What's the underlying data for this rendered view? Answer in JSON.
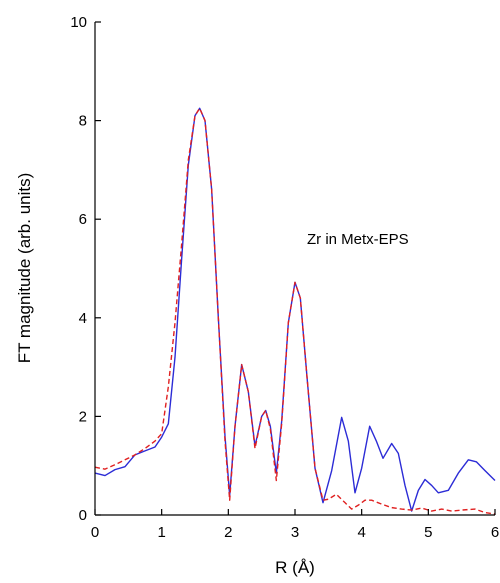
{
  "chart_data": {
    "type": "line",
    "title": "",
    "xlabel": "R (Å)",
    "ylabel": "FT magnitude (arb. units)",
    "xlim": [
      0,
      6
    ],
    "ylim": [
      0,
      10
    ],
    "x_ticks": [
      0,
      1,
      2,
      3,
      4,
      5,
      6
    ],
    "y_ticks": [
      0,
      2,
      4,
      6,
      8,
      10
    ],
    "grid": false,
    "annotation": "Zr in Metx-EPS",
    "series": [
      {
        "style": "solid",
        "color": "#2c2cd6",
        "points": [
          [
            0.0,
            0.85
          ],
          [
            0.15,
            0.8
          ],
          [
            0.3,
            0.92
          ],
          [
            0.45,
            0.98
          ],
          [
            0.6,
            1.22
          ],
          [
            0.75,
            1.3
          ],
          [
            0.9,
            1.38
          ],
          [
            1.0,
            1.58
          ],
          [
            1.1,
            1.85
          ],
          [
            1.2,
            3.2
          ],
          [
            1.3,
            5.2
          ],
          [
            1.4,
            7.1
          ],
          [
            1.5,
            8.1
          ],
          [
            1.57,
            8.25
          ],
          [
            1.65,
            8.0
          ],
          [
            1.75,
            6.6
          ],
          [
            1.85,
            4.0
          ],
          [
            1.95,
            1.6
          ],
          [
            2.02,
            0.4
          ],
          [
            2.1,
            1.8
          ],
          [
            2.2,
            3.05
          ],
          [
            2.3,
            2.5
          ],
          [
            2.4,
            1.4
          ],
          [
            2.5,
            2.0
          ],
          [
            2.56,
            2.12
          ],
          [
            2.63,
            1.8
          ],
          [
            2.72,
            0.85
          ],
          [
            2.8,
            1.9
          ],
          [
            2.9,
            3.9
          ],
          [
            3.0,
            4.72
          ],
          [
            3.08,
            4.4
          ],
          [
            3.18,
            2.8
          ],
          [
            3.3,
            0.95
          ],
          [
            3.42,
            0.25
          ],
          [
            3.55,
            0.9
          ],
          [
            3.7,
            1.98
          ],
          [
            3.8,
            1.5
          ],
          [
            3.9,
            0.45
          ],
          [
            4.0,
            0.95
          ],
          [
            4.12,
            1.8
          ],
          [
            4.22,
            1.5
          ],
          [
            4.32,
            1.15
          ],
          [
            4.45,
            1.45
          ],
          [
            4.55,
            1.25
          ],
          [
            4.65,
            0.6
          ],
          [
            4.75,
            0.08
          ],
          [
            4.85,
            0.5
          ],
          [
            4.95,
            0.72
          ],
          [
            5.05,
            0.6
          ],
          [
            5.15,
            0.45
          ],
          [
            5.3,
            0.5
          ],
          [
            5.45,
            0.85
          ],
          [
            5.6,
            1.12
          ],
          [
            5.72,
            1.08
          ],
          [
            5.85,
            0.9
          ],
          [
            6.0,
            0.7
          ]
        ]
      },
      {
        "style": "dashed",
        "color": "#e02020",
        "points": [
          [
            0.0,
            0.97
          ],
          [
            0.15,
            0.93
          ],
          [
            0.3,
            1.02
          ],
          [
            0.45,
            1.12
          ],
          [
            0.6,
            1.22
          ],
          [
            0.75,
            1.35
          ],
          [
            0.9,
            1.5
          ],
          [
            1.0,
            1.65
          ],
          [
            1.1,
            2.6
          ],
          [
            1.2,
            3.9
          ],
          [
            1.3,
            5.5
          ],
          [
            1.4,
            7.2
          ],
          [
            1.5,
            8.1
          ],
          [
            1.57,
            8.25
          ],
          [
            1.65,
            8.0
          ],
          [
            1.75,
            6.6
          ],
          [
            1.85,
            4.0
          ],
          [
            1.95,
            1.5
          ],
          [
            2.02,
            0.3
          ],
          [
            2.1,
            1.8
          ],
          [
            2.2,
            3.05
          ],
          [
            2.3,
            2.5
          ],
          [
            2.4,
            1.35
          ],
          [
            2.5,
            2.0
          ],
          [
            2.56,
            2.12
          ],
          [
            2.63,
            1.75
          ],
          [
            2.72,
            0.7
          ],
          [
            2.8,
            1.85
          ],
          [
            2.9,
            3.9
          ],
          [
            3.0,
            4.72
          ],
          [
            3.08,
            4.4
          ],
          [
            3.18,
            2.8
          ],
          [
            3.3,
            0.95
          ],
          [
            3.42,
            0.3
          ],
          [
            3.5,
            0.32
          ],
          [
            3.62,
            0.42
          ],
          [
            3.75,
            0.25
          ],
          [
            3.85,
            0.12
          ],
          [
            3.95,
            0.2
          ],
          [
            4.05,
            0.3
          ],
          [
            4.15,
            0.3
          ],
          [
            4.3,
            0.22
          ],
          [
            4.45,
            0.15
          ],
          [
            4.6,
            0.12
          ],
          [
            4.75,
            0.1
          ],
          [
            4.9,
            0.14
          ],
          [
            5.05,
            0.08
          ],
          [
            5.2,
            0.12
          ],
          [
            5.35,
            0.08
          ],
          [
            5.5,
            0.1
          ],
          [
            5.7,
            0.12
          ],
          [
            5.85,
            0.05
          ],
          [
            6.0,
            0.02
          ]
        ]
      }
    ]
  }
}
